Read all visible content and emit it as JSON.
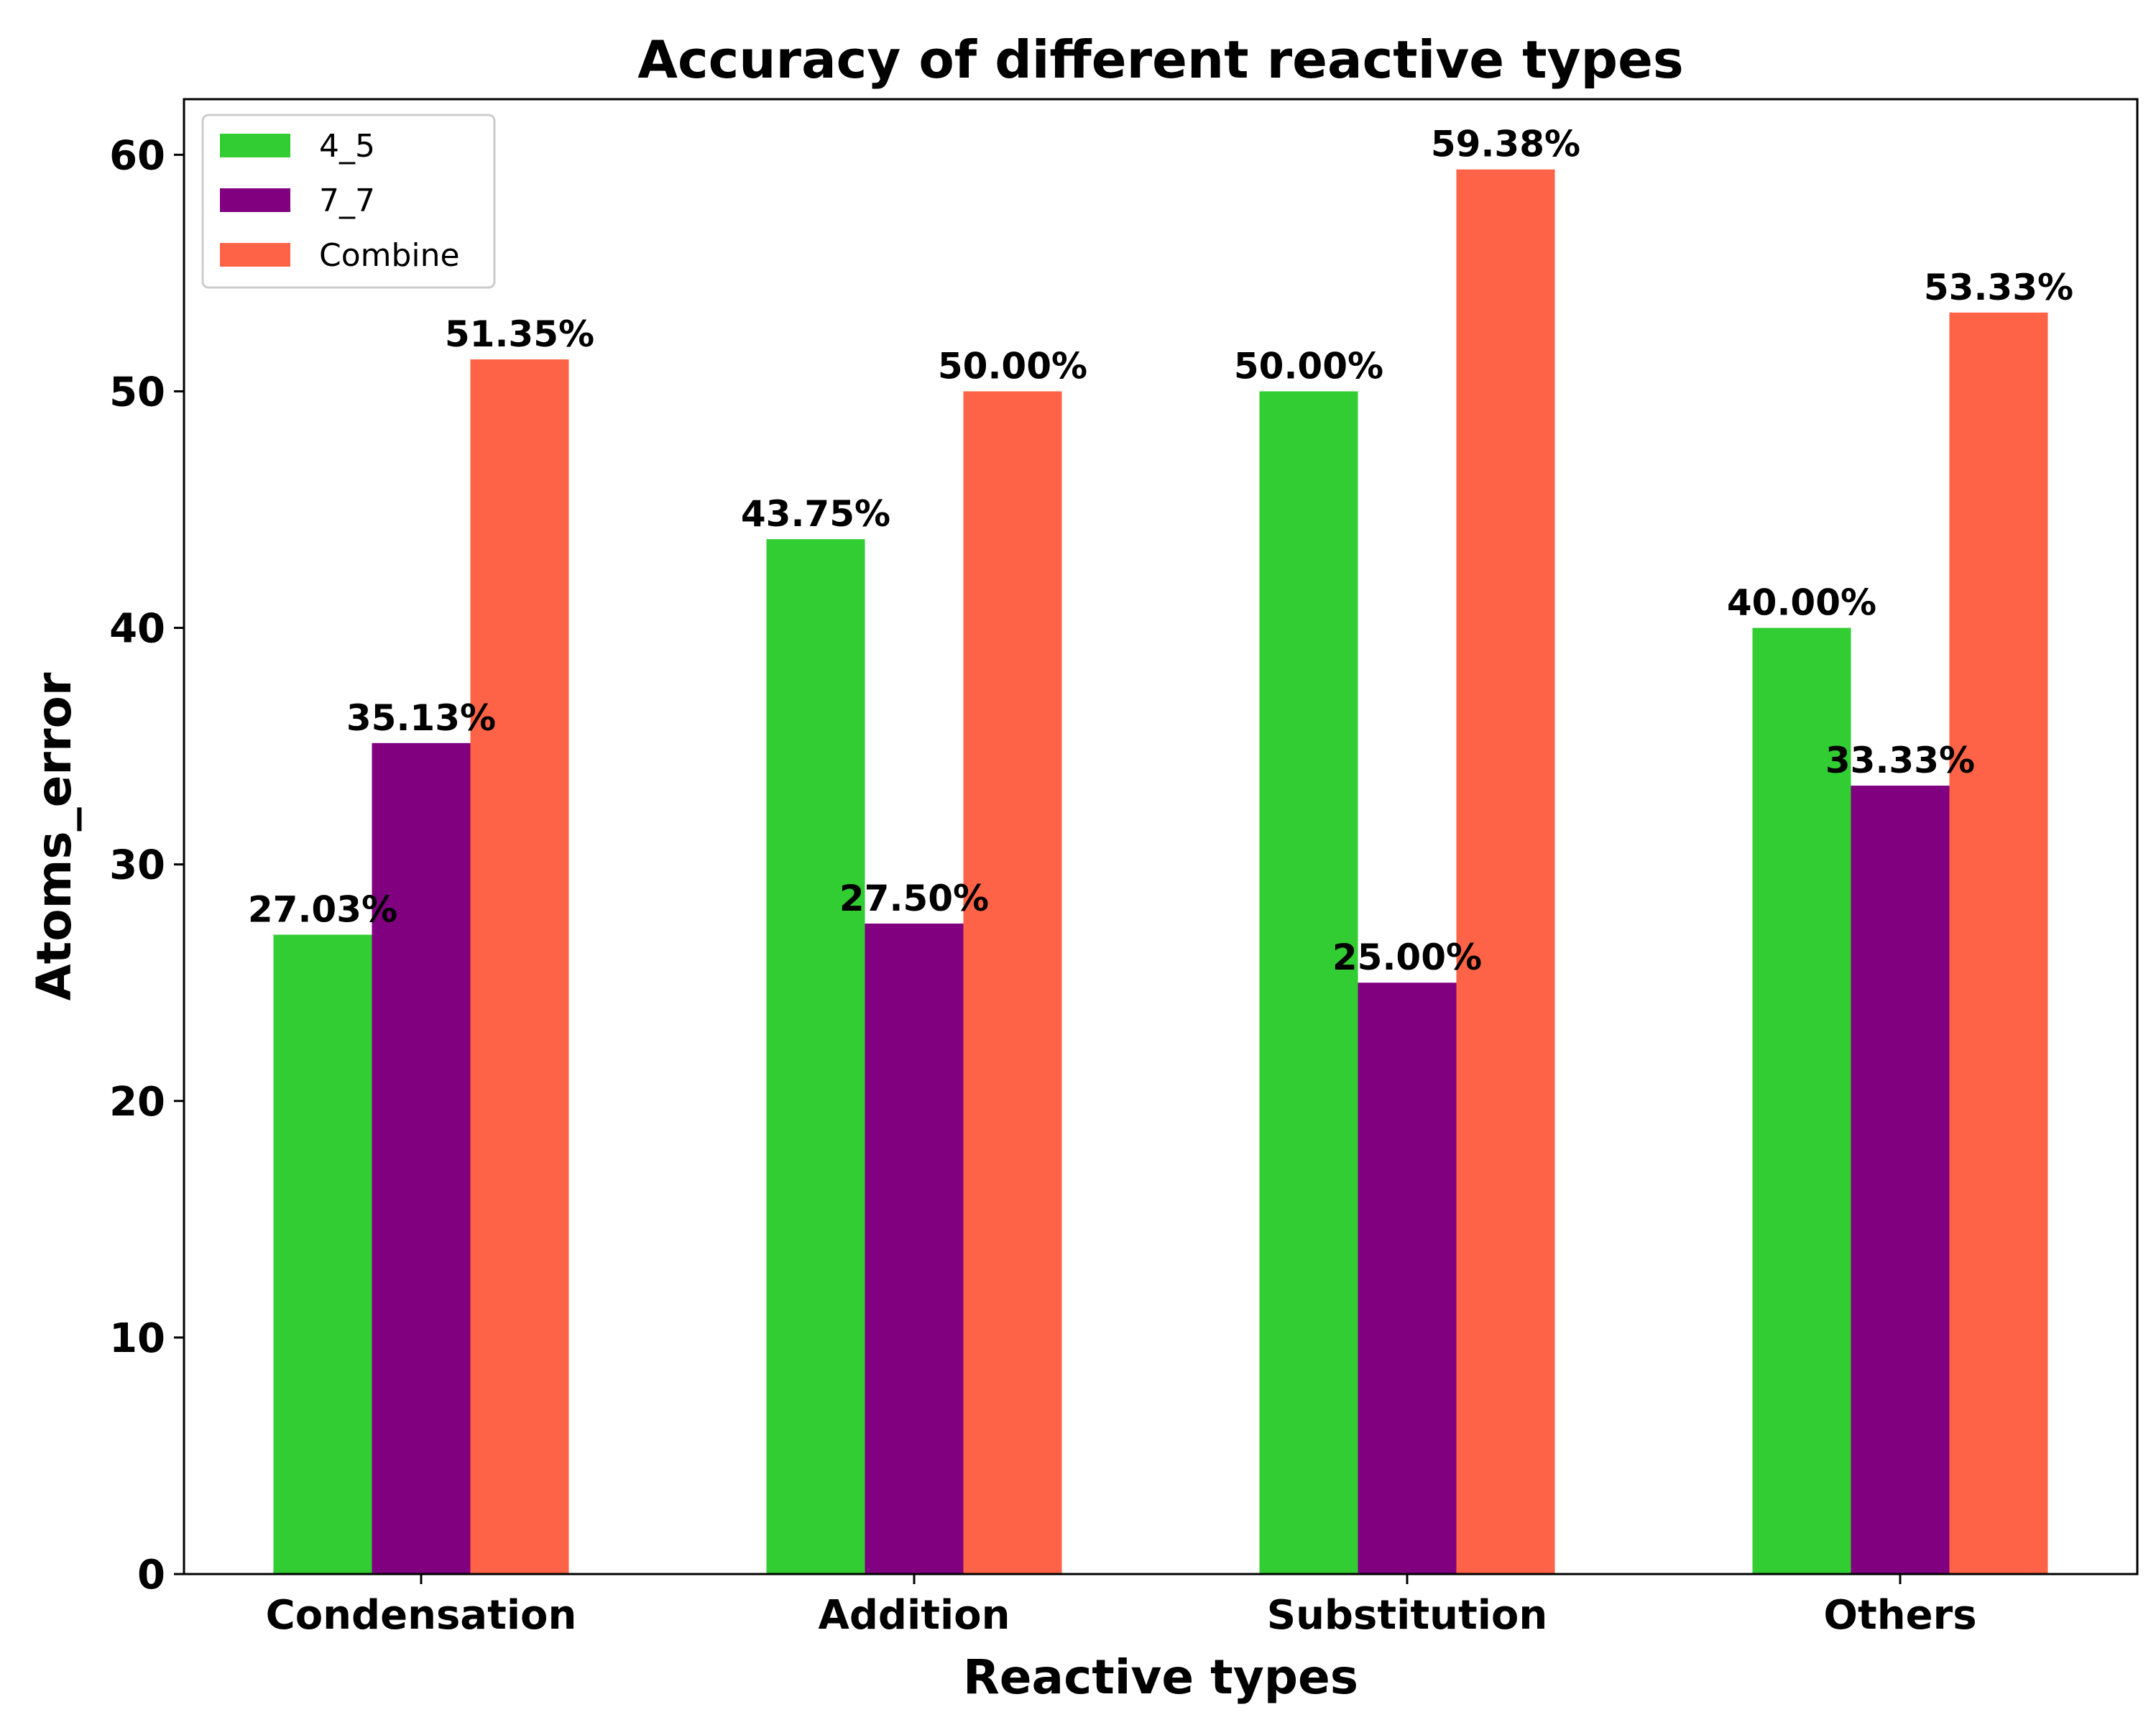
{
  "chart_data": {
    "type": "bar",
    "title": "Accuracy of different reactive types",
    "xlabel": "Reactive types",
    "ylabel": "Atoms_error",
    "categories": [
      "Condensation",
      "Addition",
      "Substitution",
      "Others"
    ],
    "series": [
      {
        "name": "4_5",
        "color": "#32cd32",
        "values": [
          27.03,
          43.75,
          50.0,
          40.0
        ],
        "labels": [
          "27.03%",
          "43.75%",
          "50.00%",
          "40.00%"
        ]
      },
      {
        "name": "7_7",
        "color": "#800080",
        "values": [
          35.13,
          27.5,
          25.0,
          33.33
        ],
        "labels": [
          "35.13%",
          "27.50%",
          "25.00%",
          "33.33%"
        ]
      },
      {
        "name": "Combine",
        "color": "#ff6347",
        "values": [
          51.35,
          50.0,
          59.38,
          53.33
        ],
        "labels": [
          "51.35%",
          "50.00%",
          "59.38%",
          "53.33%"
        ]
      }
    ],
    "ylim": [
      0,
      62.35
    ],
    "yticks": [
      0,
      10,
      20,
      30,
      40,
      50,
      60
    ],
    "grid": false,
    "legend_position": "top-left"
  }
}
